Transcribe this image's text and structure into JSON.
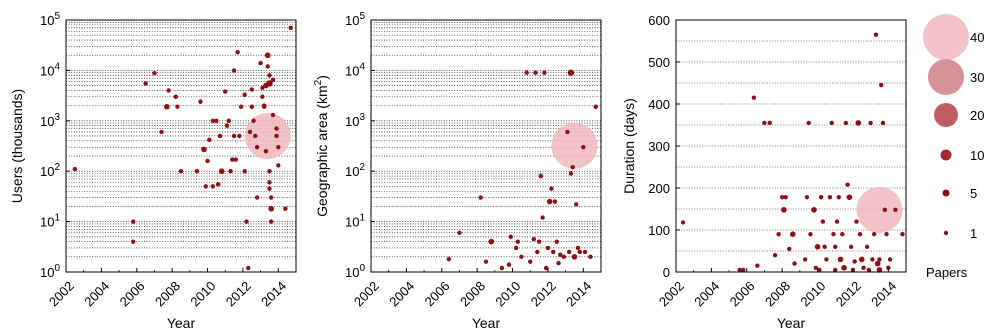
{
  "colors": {
    "point": "#8b0f14",
    "mean_bubble": "#f0b8bc",
    "grid": "#000000"
  },
  "legend": {
    "title": "Papers",
    "items": [
      {
        "label": "40",
        "value": 40,
        "color": "#f2c3c6"
      },
      {
        "label": "30",
        "value": 30,
        "color": "#d89196"
      },
      {
        "label": "20",
        "value": 20,
        "color": "#bf5c62"
      },
      {
        "label": "10",
        "value": 10,
        "color": "#a42a30"
      },
      {
        "label": "5",
        "value": 5,
        "color": "#8b0f14"
      },
      {
        "label": "1",
        "value": 1,
        "color": "#8b0f14"
      }
    ]
  },
  "chart_data": [
    {
      "type": "scatter",
      "xlabel": "Year",
      "ylabel": "Users (thousands)",
      "yscale": "log",
      "xlim": [
        2002,
        2015
      ],
      "ylim": [
        1,
        100000
      ],
      "x_ticks": [
        "2002",
        "2004",
        "2006",
        "2008",
        "2010",
        "2012",
        "2014"
      ],
      "y_ticks": [
        "10^0",
        "10^1",
        "10^2",
        "10^3",
        "10^4",
        "10^5"
      ],
      "grid": "horizontal dotted at each minor log step",
      "highlight": {
        "x": 2013.4,
        "y": 500,
        "papers": 40
      },
      "points": [
        [
          2002.5,
          110,
          1
        ],
        [
          2005.8,
          10,
          1
        ],
        [
          2005.8,
          4,
          1
        ],
        [
          2006.5,
          5500,
          1
        ],
        [
          2007.0,
          8800,
          1
        ],
        [
          2007.4,
          600,
          1
        ],
        [
          2007.7,
          1900,
          2
        ],
        [
          2007.8,
          4000,
          1
        ],
        [
          2008.2,
          3000,
          1
        ],
        [
          2008.3,
          1900,
          1
        ],
        [
          2008.5,
          100,
          1
        ],
        [
          2009.4,
          100,
          1
        ],
        [
          2009.6,
          2400,
          1
        ],
        [
          2009.8,
          270,
          2
        ],
        [
          2009.9,
          50,
          1
        ],
        [
          2010.0,
          160,
          1
        ],
        [
          2010.1,
          420,
          1
        ],
        [
          2010.3,
          1000,
          1
        ],
        [
          2010.3,
          50,
          1
        ],
        [
          2010.5,
          1000,
          1
        ],
        [
          2010.6,
          55,
          1
        ],
        [
          2010.7,
          500,
          1
        ],
        [
          2010.8,
          100,
          2
        ],
        [
          2011.0,
          3800,
          1
        ],
        [
          2011.1,
          800,
          1
        ],
        [
          2011.2,
          1000,
          1
        ],
        [
          2011.3,
          100,
          1
        ],
        [
          2011.4,
          170,
          1
        ],
        [
          2011.5,
          10000,
          1
        ],
        [
          2011.5,
          500,
          1
        ],
        [
          2011.6,
          170,
          1
        ],
        [
          2011.7,
          23000,
          1
        ],
        [
          2011.8,
          500,
          1
        ],
        [
          2011.9,
          1900,
          1
        ],
        [
          2012.1,
          3300,
          1
        ],
        [
          2012.1,
          100,
          1
        ],
        [
          2012.2,
          10,
          1
        ],
        [
          2012.3,
          1.2,
          1
        ],
        [
          2012.4,
          600,
          1
        ],
        [
          2012.5,
          4200,
          1
        ],
        [
          2012.5,
          1900,
          1
        ],
        [
          2012.6,
          1000,
          1
        ],
        [
          2012.7,
          500,
          1
        ],
        [
          2012.8,
          300,
          1
        ],
        [
          2012.8,
          30,
          1
        ],
        [
          2013.0,
          14000,
          1
        ],
        [
          2013.1,
          4500,
          1
        ],
        [
          2013.1,
          3000,
          1
        ],
        [
          2013.2,
          2000,
          1
        ],
        [
          2013.2,
          1900,
          1
        ],
        [
          2013.3,
          5000,
          2
        ],
        [
          2013.3,
          250,
          1
        ],
        [
          2013.4,
          20000,
          2
        ],
        [
          2013.4,
          12000,
          1
        ],
        [
          2013.5,
          8000,
          1
        ],
        [
          2013.5,
          5500,
          3
        ],
        [
          2013.5,
          100,
          1
        ],
        [
          2013.5,
          60,
          1
        ],
        [
          2013.5,
          45,
          1
        ],
        [
          2013.6,
          30,
          1
        ],
        [
          2013.6,
          18,
          2
        ],
        [
          2013.6,
          10,
          1
        ],
        [
          2013.7,
          6500,
          1
        ],
        [
          2013.7,
          1300,
          1
        ],
        [
          2013.9,
          700,
          1
        ],
        [
          2013.9,
          500,
          1
        ],
        [
          2014.0,
          300,
          1
        ],
        [
          2014.0,
          130,
          1
        ],
        [
          2014.4,
          18,
          1
        ],
        [
          2014.7,
          70000,
          1
        ]
      ]
    },
    {
      "type": "scatter",
      "xlabel": "Year",
      "ylabel": "Geographic area (km2)",
      "yscale": "log",
      "xlim": [
        2002,
        2015
      ],
      "ylim": [
        1,
        100000
      ],
      "x_ticks": [
        "2002",
        "2004",
        "2006",
        "2008",
        "2010",
        "2012",
        "2014"
      ],
      "y_ticks": [
        "10^0",
        "10^1",
        "10^2",
        "10^3",
        "10^4",
        "10^5"
      ],
      "grid": "horizontal dotted at each minor log step",
      "highlight": {
        "x": 2013.5,
        "y": 320,
        "papers": 40
      },
      "points": [
        [
          2006.4,
          1.8,
          1
        ],
        [
          2007.0,
          6,
          1
        ],
        [
          2008.2,
          30,
          1
        ],
        [
          2008.5,
          1.6,
          1
        ],
        [
          2008.8,
          4,
          2
        ],
        [
          2009.4,
          1.2,
          1
        ],
        [
          2009.8,
          1.4,
          1
        ],
        [
          2009.9,
          5,
          1
        ],
        [
          2010.2,
          3,
          1
        ],
        [
          2010.3,
          4,
          1
        ],
        [
          2010.5,
          2,
          1
        ],
        [
          2010.8,
          9000,
          1
        ],
        [
          2011.0,
          1.6,
          1
        ],
        [
          2011.2,
          4.5,
          1
        ],
        [
          2011.3,
          9000,
          1
        ],
        [
          2011.4,
          2.5,
          1
        ],
        [
          2011.5,
          4,
          1
        ],
        [
          2011.6,
          80,
          1
        ],
        [
          2011.7,
          12,
          1
        ],
        [
          2011.8,
          9000,
          1
        ],
        [
          2011.9,
          1.2,
          1
        ],
        [
          2012.0,
          3,
          1
        ],
        [
          2012.1,
          25,
          2
        ],
        [
          2012.2,
          45,
          1
        ],
        [
          2012.3,
          2.5,
          1
        ],
        [
          2012.4,
          25,
          1
        ],
        [
          2012.5,
          4,
          1
        ],
        [
          2012.6,
          1.5,
          1
        ],
        [
          2012.7,
          2.2,
          1
        ],
        [
          2012.9,
          2,
          1
        ],
        [
          2013.1,
          600,
          1
        ],
        [
          2013.2,
          2.5,
          1
        ],
        [
          2013.3,
          9000,
          3
        ],
        [
          2013.3,
          90,
          1
        ],
        [
          2013.4,
          120,
          1
        ],
        [
          2013.5,
          2,
          2
        ],
        [
          2013.6,
          22,
          1
        ],
        [
          2013.7,
          3,
          1
        ],
        [
          2013.8,
          2.5,
          1
        ],
        [
          2014.0,
          300,
          1
        ],
        [
          2014.1,
          2.5,
          1
        ],
        [
          2014.4,
          2,
          1
        ],
        [
          2014.7,
          1900,
          1
        ]
      ]
    },
    {
      "type": "scatter",
      "xlabel": "Year",
      "ylabel": "Duration (days)",
      "yscale": "linear",
      "xlim": [
        2002,
        2015
      ],
      "ylim": [
        0,
        600
      ],
      "x_ticks": [
        "2002",
        "2004",
        "2006",
        "2008",
        "2010",
        "2012",
        "2014"
      ],
      "y_ticks": [
        "0",
        "100",
        "200",
        "300",
        "400",
        "500",
        "600"
      ],
      "grid": "horizontal dotted every 50",
      "highlight": {
        "x": 2013.5,
        "y": 148,
        "papers": 40
      },
      "points": [
        [
          2002.4,
          118,
          1
        ],
        [
          2005.6,
          5,
          1
        ],
        [
          2005.8,
          5,
          1
        ],
        [
          2006.4,
          415,
          1
        ],
        [
          2006.6,
          15,
          1
        ],
        [
          2007.0,
          355,
          1
        ],
        [
          2007.3,
          355,
          1
        ],
        [
          2007.6,
          40,
          1
        ],
        [
          2007.8,
          90,
          1
        ],
        [
          2008.0,
          178,
          1
        ],
        [
          2008.1,
          148,
          2
        ],
        [
          2008.2,
          178,
          1
        ],
        [
          2008.4,
          55,
          1
        ],
        [
          2008.6,
          90,
          2
        ],
        [
          2008.7,
          20,
          1
        ],
        [
          2009.3,
          30,
          1
        ],
        [
          2009.4,
          178,
          1
        ],
        [
          2009.5,
          355,
          1
        ],
        [
          2009.6,
          90,
          1
        ],
        [
          2009.8,
          148,
          2
        ],
        [
          2009.9,
          10,
          1
        ],
        [
          2010.0,
          60,
          2
        ],
        [
          2010.1,
          5,
          1
        ],
        [
          2010.2,
          178,
          1
        ],
        [
          2010.3,
          120,
          1
        ],
        [
          2010.4,
          60,
          1
        ],
        [
          2010.5,
          30,
          1
        ],
        [
          2010.7,
          178,
          1
        ],
        [
          2010.8,
          355,
          1
        ],
        [
          2010.9,
          90,
          1
        ],
        [
          2011.0,
          60,
          1
        ],
        [
          2011.0,
          5,
          1
        ],
        [
          2011.1,
          120,
          1
        ],
        [
          2011.2,
          178,
          1
        ],
        [
          2011.3,
          30,
          2
        ],
        [
          2011.4,
          90,
          1
        ],
        [
          2011.5,
          10,
          2
        ],
        [
          2011.6,
          355,
          1
        ],
        [
          2011.7,
          208,
          1
        ],
        [
          2011.8,
          178,
          2
        ],
        [
          2011.9,
          60,
          1
        ],
        [
          2012.0,
          5,
          1
        ],
        [
          2012.1,
          25,
          1
        ],
        [
          2012.2,
          120,
          1
        ],
        [
          2012.3,
          355,
          2
        ],
        [
          2012.4,
          90,
          1
        ],
        [
          2012.5,
          30,
          2
        ],
        [
          2012.6,
          10,
          1
        ],
        [
          2012.8,
          60,
          1
        ],
        [
          2012.9,
          5,
          1
        ],
        [
          2013.0,
          355,
          1
        ],
        [
          2013.1,
          30,
          1
        ],
        [
          2013.2,
          90,
          1
        ],
        [
          2013.3,
          565,
          1
        ],
        [
          2013.4,
          20,
          2
        ],
        [
          2013.5,
          5,
          2
        ],
        [
          2013.5,
          30,
          1
        ],
        [
          2013.6,
          445,
          1
        ],
        [
          2013.7,
          355,
          1
        ],
        [
          2013.8,
          148,
          1
        ],
        [
          2013.9,
          90,
          1
        ],
        [
          2014.0,
          10,
          1
        ],
        [
          2014.1,
          30,
          1
        ],
        [
          2014.4,
          148,
          1
        ],
        [
          2014.8,
          90,
          1
        ]
      ]
    }
  ]
}
